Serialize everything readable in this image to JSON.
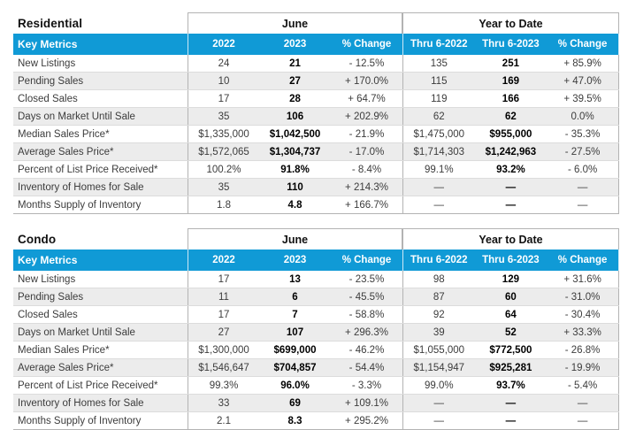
{
  "colors": {
    "accent": "#109ad6",
    "stripe": "#ececec",
    "box_border": "#b3b3b3",
    "row_border": "#dcdcdc",
    "label_text": "#3c3c3c",
    "bold_text": "#000000"
  },
  "tables": [
    {
      "title": "Residential",
      "month_header": "June",
      "ytd_header": "Year to Date",
      "key_metrics_label": "Key Metrics",
      "columns": [
        "2022",
        "2023",
        "% Change",
        "Thru 6-2022",
        "Thru 6-2023",
        "% Change"
      ],
      "rows": [
        {
          "label": "New Listings",
          "values": [
            "24",
            "21",
            "- 12.5%",
            "135",
            "251",
            "+ 85.9%"
          ]
        },
        {
          "label": "Pending Sales",
          "values": [
            "10",
            "27",
            "+ 170.0%",
            "115",
            "169",
            "+ 47.0%"
          ]
        },
        {
          "label": "Closed Sales",
          "values": [
            "17",
            "28",
            "+ 64.7%",
            "119",
            "166",
            "+ 39.5%"
          ]
        },
        {
          "label": "Days on Market Until Sale",
          "values": [
            "35",
            "106",
            "+ 202.9%",
            "62",
            "62",
            "0.0%"
          ]
        },
        {
          "label": "Median Sales Price*",
          "values": [
            "$1,335,000",
            "$1,042,500",
            "- 21.9%",
            "$1,475,000",
            "$955,000",
            "- 35.3%"
          ]
        },
        {
          "label": "Average Sales Price*",
          "values": [
            "$1,572,065",
            "$1,304,737",
            "- 17.0%",
            "$1,714,303",
            "$1,242,963",
            "- 27.5%"
          ]
        },
        {
          "label": "Percent of List Price Received*",
          "values": [
            "100.2%",
            "91.8%",
            "- 8.4%",
            "99.1%",
            "93.2%",
            "- 6.0%"
          ]
        },
        {
          "label": "Inventory of Homes for Sale",
          "values": [
            "35",
            "110",
            "+ 214.3%",
            "—",
            "—",
            "—"
          ]
        },
        {
          "label": "Months Supply of Inventory",
          "values": [
            "1.8",
            "4.8",
            "+ 166.7%",
            "—",
            "—",
            "—"
          ]
        }
      ]
    },
    {
      "title": "Condo",
      "month_header": "June",
      "ytd_header": "Year to Date",
      "key_metrics_label": "Key Metrics",
      "columns": [
        "2022",
        "2023",
        "% Change",
        "Thru 6-2022",
        "Thru 6-2023",
        "% Change"
      ],
      "rows": [
        {
          "label": "New Listings",
          "values": [
            "17",
            "13",
            "- 23.5%",
            "98",
            "129",
            "+ 31.6%"
          ]
        },
        {
          "label": "Pending Sales",
          "values": [
            "11",
            "6",
            "- 45.5%",
            "87",
            "60",
            "- 31.0%"
          ]
        },
        {
          "label": "Closed Sales",
          "values": [
            "17",
            "7",
            "- 58.8%",
            "92",
            "64",
            "- 30.4%"
          ]
        },
        {
          "label": "Days on Market Until Sale",
          "values": [
            "27",
            "107",
            "+ 296.3%",
            "39",
            "52",
            "+ 33.3%"
          ]
        },
        {
          "label": "Median Sales Price*",
          "values": [
            "$1,300,000",
            "$699,000",
            "- 46.2%",
            "$1,055,000",
            "$772,500",
            "- 26.8%"
          ]
        },
        {
          "label": "Average Sales Price*",
          "values": [
            "$1,546,647",
            "$704,857",
            "- 54.4%",
            "$1,154,947",
            "$925,281",
            "- 19.9%"
          ]
        },
        {
          "label": "Percent of List Price Received*",
          "values": [
            "99.3%",
            "96.0%",
            "- 3.3%",
            "99.0%",
            "93.7%",
            "- 5.4%"
          ]
        },
        {
          "label": "Inventory of Homes for Sale",
          "values": [
            "33",
            "69",
            "+ 109.1%",
            "—",
            "—",
            "—"
          ]
        },
        {
          "label": "Months Supply of Inventory",
          "values": [
            "2.1",
            "8.3",
            "+ 295.2%",
            "—",
            "—",
            "—"
          ]
        }
      ]
    }
  ]
}
